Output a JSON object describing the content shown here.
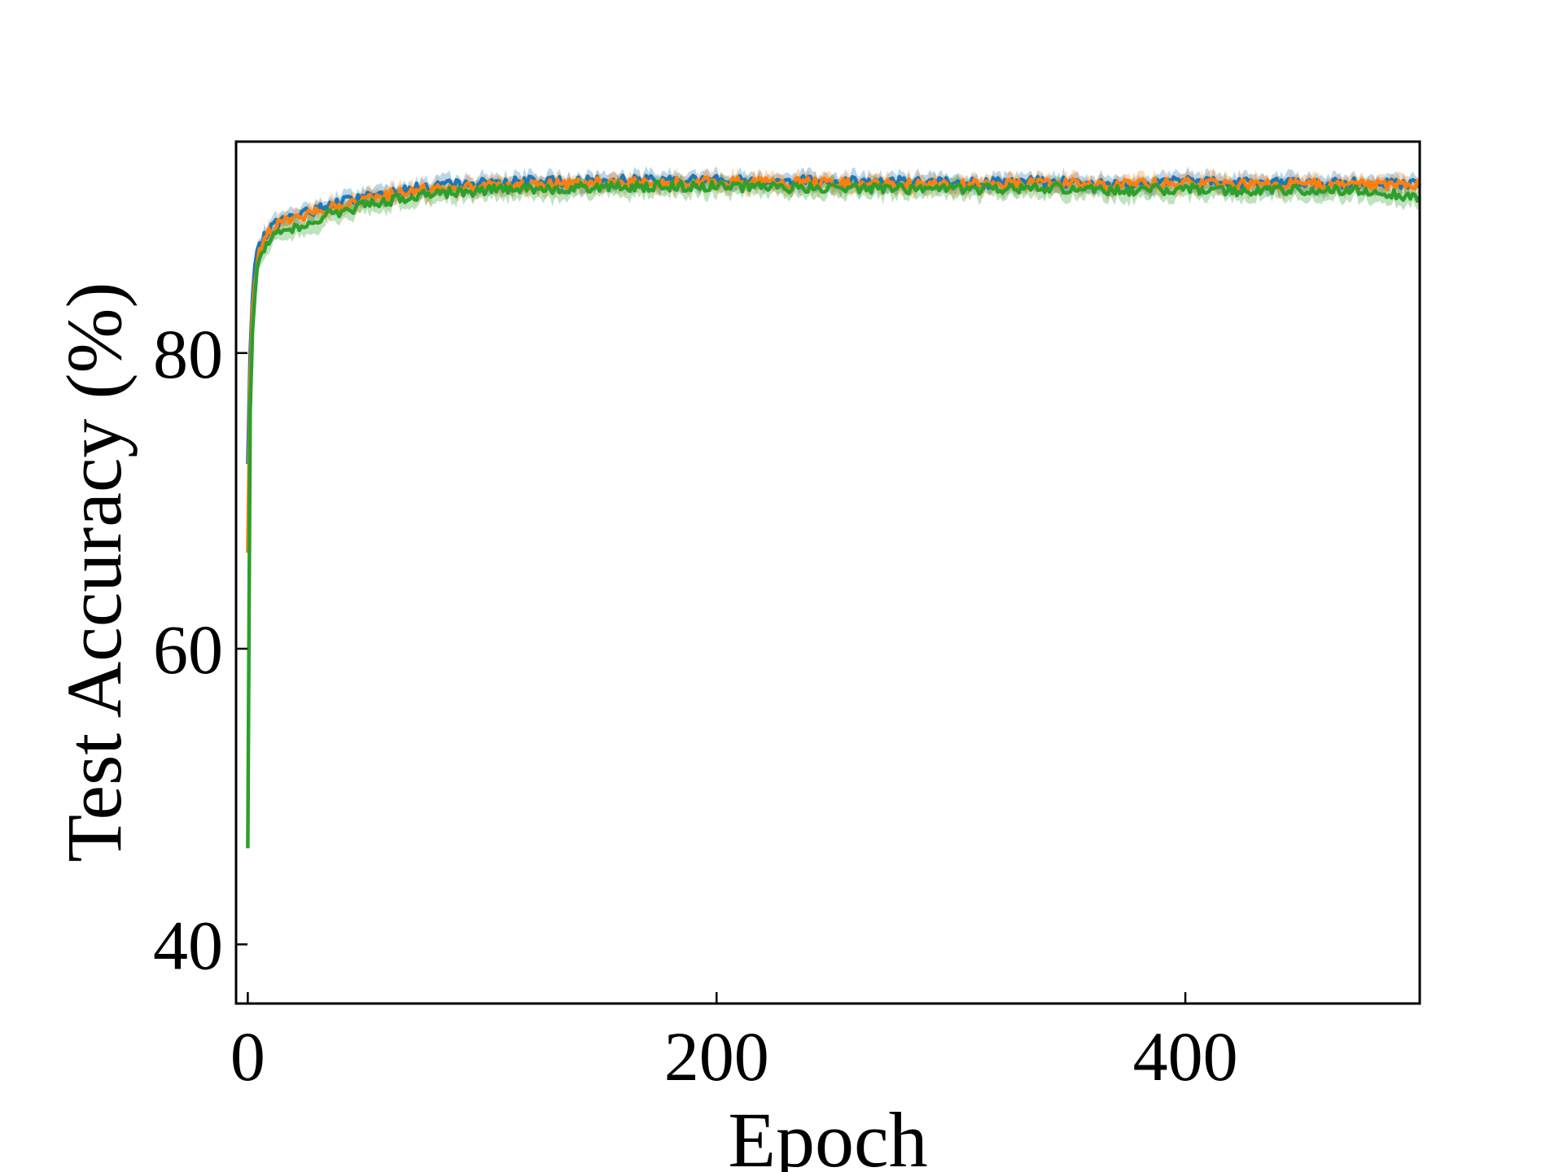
{
  "chart_data": {
    "type": "line",
    "xlabel": "Epoch",
    "ylabel": "Test Accuracy (%)",
    "xlim": [
      -5,
      500
    ],
    "ylim": [
      36,
      94.3
    ],
    "xticks": [
      0,
      200,
      400
    ],
    "yticks": [
      40,
      60,
      80
    ],
    "tick_direction": "in",
    "grid": false,
    "legend": "none",
    "series": [
      {
        "color": "#1f77b4",
        "x": [
          0,
          1,
          2,
          3,
          4,
          5,
          6,
          8,
          10,
          12,
          15,
          20,
          25,
          30,
          40,
          50,
          60,
          70,
          80,
          90,
          100,
          120,
          140,
          160,
          180,
          200,
          220,
          240,
          260,
          280,
          300,
          320,
          340,
          360,
          380,
          400,
          420,
          440,
          460,
          480,
          500
        ],
        "y": [
          72.5,
          80.0,
          83.8,
          85.6,
          86.6,
          87.1,
          87.6,
          88.1,
          88.5,
          88.8,
          89.0,
          89.2,
          89.5,
          89.8,
          90.2,
          90.6,
          90.9,
          91.1,
          91.3,
          91.4,
          91.5,
          91.6,
          91.6,
          91.7,
          91.7,
          91.7,
          91.6,
          91.7,
          91.6,
          91.6,
          91.5,
          91.5,
          91.6,
          91.5,
          91.5,
          91.6,
          91.5,
          91.5,
          91.5,
          91.5,
          91.4
        ]
      },
      {
        "color": "#ff7f0e",
        "x": [
          0,
          1,
          2,
          3,
          4,
          5,
          6,
          8,
          10,
          12,
          15,
          20,
          25,
          30,
          40,
          50,
          60,
          70,
          80,
          90,
          100,
          120,
          140,
          160,
          180,
          200,
          220,
          240,
          260,
          280,
          300,
          320,
          340,
          360,
          380,
          400,
          420,
          440,
          460,
          480,
          500
        ],
        "y": [
          66.5,
          78.0,
          82.8,
          85.0,
          86.2,
          86.8,
          87.3,
          87.9,
          88.3,
          88.6,
          88.8,
          89.0,
          89.3,
          89.6,
          90.0,
          90.4,
          90.7,
          90.9,
          91.1,
          91.2,
          91.3,
          91.4,
          91.5,
          91.5,
          91.5,
          91.6,
          91.5,
          91.5,
          91.5,
          91.4,
          91.4,
          91.4,
          91.5,
          91.4,
          91.4,
          91.5,
          91.4,
          91.4,
          91.4,
          91.4,
          91.3
        ]
      },
      {
        "color": "#2ca02c",
        "x": [
          0,
          1,
          2,
          3,
          4,
          5,
          6,
          8,
          10,
          12,
          15,
          20,
          25,
          30,
          40,
          50,
          60,
          70,
          80,
          90,
          100,
          120,
          140,
          160,
          180,
          200,
          220,
          240,
          260,
          280,
          300,
          320,
          340,
          360,
          380,
          400,
          420,
          440,
          460,
          480,
          500
        ],
        "y": [
          46.5,
          76.0,
          81.5,
          84.0,
          85.5,
          86.2,
          86.8,
          87.4,
          87.8,
          88.1,
          88.3,
          88.5,
          88.8,
          89.1,
          89.6,
          90.0,
          90.3,
          90.6,
          90.8,
          90.9,
          91.0,
          91.1,
          91.2,
          91.2,
          91.3,
          91.3,
          91.2,
          91.2,
          91.2,
          91.1,
          91.1,
          91.1,
          91.2,
          91.1,
          91.0,
          91.1,
          91.0,
          91.0,
          91.0,
          91.0,
          90.5
        ]
      }
    ]
  }
}
